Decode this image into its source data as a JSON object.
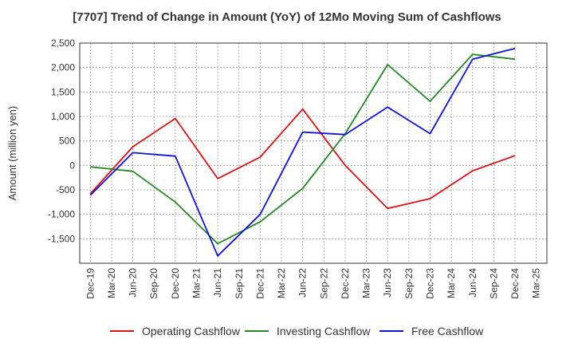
{
  "chart_data": {
    "type": "line",
    "title": "[7707]  Trend of Change in Amount (YoY) of 12Mo Moving Sum of Cashflows",
    "xlabel": "",
    "ylabel": "Amount (million yen)",
    "ylim": [
      -2000,
      2500
    ],
    "yticks": [
      2500,
      2000,
      1500,
      1000,
      500,
      0,
      -500,
      -1000,
      -1500
    ],
    "ytick_labels": [
      "2,500",
      "2,000",
      "1,500",
      "1,000",
      "500",
      "0",
      "-500",
      "-1,000",
      "-1,500"
    ],
    "categories": [
      "Dec-19",
      "Mar-20",
      "Jun-20",
      "Sep-20",
      "Dec-20",
      "Mar-21",
      "Jun-21",
      "Sep-21",
      "Dec-21",
      "Mar-22",
      "Jun-22",
      "Sep-22",
      "Dec-22",
      "Mar-23",
      "Jun-23",
      "Sep-23",
      "Dec-23",
      "Mar-24",
      "Jun-24",
      "Sep-24",
      "Dec-24",
      "Mar-25"
    ],
    "grid": true,
    "legend_position": "bottom",
    "series": [
      {
        "name": "Operating Cashflow",
        "color": "#dd1111",
        "points": [
          [
            "Dec-19",
            -580
          ],
          [
            "Jun-20",
            380
          ],
          [
            "Dec-20",
            960
          ],
          [
            "Jun-21",
            -270
          ],
          [
            "Dec-21",
            170
          ],
          [
            "Jun-22",
            1150
          ],
          [
            "Dec-22",
            0
          ],
          [
            "Jun-23",
            -880
          ],
          [
            "Dec-23",
            -680
          ],
          [
            "Jun-24",
            -110
          ],
          [
            "Dec-24",
            200
          ]
        ]
      },
      {
        "name": "Investing Cashflow",
        "color": "#228822",
        "points": [
          [
            "Dec-19",
            -30
          ],
          [
            "Jun-20",
            -120
          ],
          [
            "Dec-20",
            -750
          ],
          [
            "Jun-21",
            -1600
          ],
          [
            "Dec-21",
            -1150
          ],
          [
            "Jun-22",
            -470
          ],
          [
            "Dec-22",
            650
          ],
          [
            "Jun-23",
            2060
          ],
          [
            "Dec-23",
            1310
          ],
          [
            "Jun-24",
            2270
          ],
          [
            "Dec-24",
            2170
          ]
        ]
      },
      {
        "name": "Free Cashflow",
        "color": "#1111dd",
        "points": [
          [
            "Dec-19",
            -610
          ],
          [
            "Jun-20",
            260
          ],
          [
            "Dec-20",
            190
          ],
          [
            "Jun-21",
            -1850
          ],
          [
            "Dec-21",
            -1000
          ],
          [
            "Jun-22",
            680
          ],
          [
            "Dec-22",
            630
          ],
          [
            "Jun-23",
            1190
          ],
          [
            "Dec-23",
            650
          ],
          [
            "Jun-24",
            2170
          ],
          [
            "Dec-24",
            2390
          ]
        ]
      }
    ]
  }
}
